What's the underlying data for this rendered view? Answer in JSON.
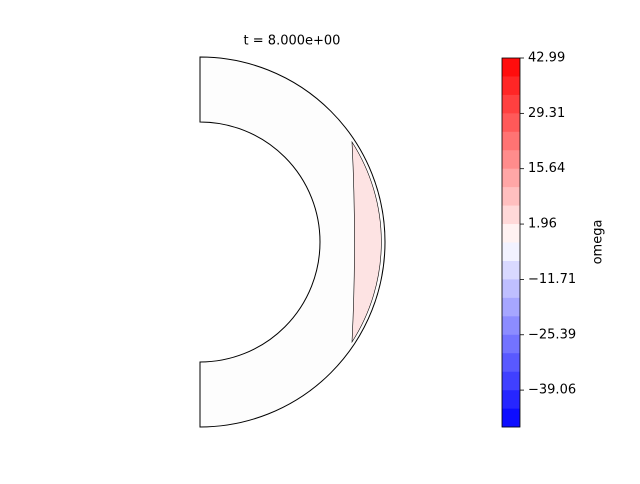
{
  "chart_data": {
    "type": "contour-colorbar",
    "title": "t = 8.000e+00",
    "colorbar_label": "omega",
    "colormap": "bwr",
    "ylim": [
      -48.18,
      42.99
    ],
    "levels": [
      42.99,
      38.43,
      33.87,
      29.31,
      24.76,
      20.2,
      15.64,
      11.08,
      6.52,
      1.96,
      -2.6,
      -7.16,
      -11.71,
      -16.27,
      -20.83,
      -25.39,
      -29.95,
      -34.51,
      -39.06,
      -43.62,
      -48.18
    ],
    "yticks": [
      42.99,
      29.31,
      15.64,
      1.96,
      {
        "value": -11.71,
        "label": "−11.71"
      },
      {
        "value": -25.39,
        "label": "−25.39"
      },
      {
        "value": -39.06,
        "label": "−39.06"
      }
    ]
  }
}
